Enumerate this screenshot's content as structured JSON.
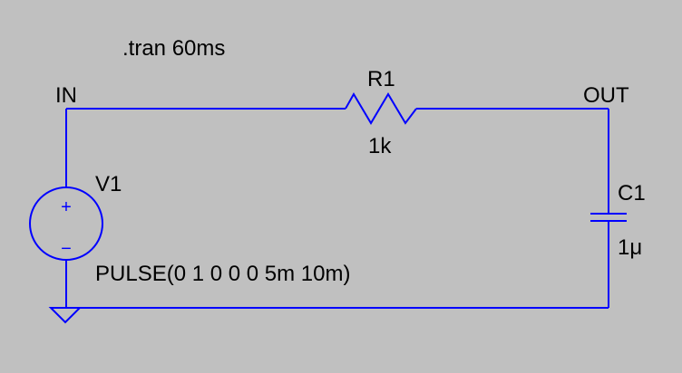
{
  "directive": ".tran 60ms",
  "nets": {
    "input": "IN",
    "output": "OUT"
  },
  "components": {
    "resistor": {
      "name": "R1",
      "value": "1k"
    },
    "source": {
      "name": "V1",
      "value": "PULSE(0 1 0 0 0 5m 10m)",
      "plus": "+",
      "minus": "−"
    },
    "capacitor": {
      "name": "C1",
      "value": "1μ"
    }
  },
  "colors": {
    "background": "#c0c0c0",
    "wire": "#0000ff",
    "text": "#000000"
  }
}
